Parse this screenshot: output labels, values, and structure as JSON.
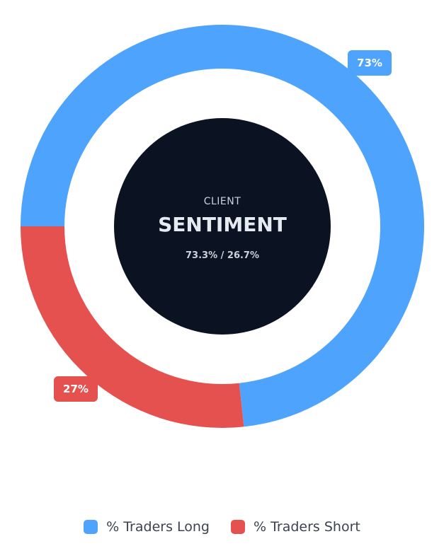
{
  "center": {
    "label_top": "CLIENT",
    "label_main": "SENTIMENT",
    "label_ratio": "73.3% / 26.7%"
  },
  "colors": {
    "long": "#4ea3fc",
    "short": "#e5514f",
    "center_fill": "#0b1222"
  },
  "chart_data": {
    "type": "pie",
    "title": "",
    "categories": [
      "% Traders Long",
      "% Traders Short"
    ],
    "values": [
      73.3,
      26.7
    ],
    "data_labels": [
      "73%",
      "27%"
    ],
    "legend": "bottom-center"
  }
}
